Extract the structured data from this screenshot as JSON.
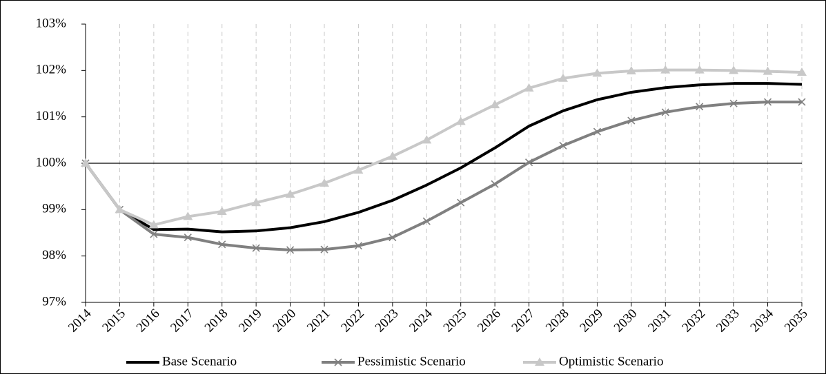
{
  "chart_data": {
    "type": "line",
    "categories": [
      "2014",
      "2015",
      "2016",
      "2017",
      "2018",
      "2019",
      "2020",
      "2021",
      "2022",
      "2023",
      "2024",
      "2025",
      "2026",
      "2027",
      "2028",
      "2029",
      "2030",
      "2031",
      "2032",
      "2033",
      "2034",
      "2035"
    ],
    "series": [
      {
        "name": "Base Scenario",
        "color": "#000000",
        "marker": "none",
        "values": [
          100,
          99.0,
          98.57,
          98.58,
          98.52,
          98.54,
          98.61,
          98.74,
          98.94,
          99.2,
          99.53,
          99.9,
          100.33,
          100.8,
          101.13,
          101.37,
          101.53,
          101.63,
          101.69,
          101.72,
          101.72,
          101.7
        ]
      },
      {
        "name": "Pessimistic Scenario",
        "color": "#808080",
        "marker": "x",
        "values": [
          100,
          99.0,
          98.47,
          98.4,
          98.25,
          98.17,
          98.13,
          98.14,
          98.22,
          98.4,
          98.75,
          99.15,
          99.55,
          100.02,
          100.38,
          100.68,
          100.92,
          101.1,
          101.22,
          101.29,
          101.32,
          101.32
        ]
      },
      {
        "name": "Optimistic Scenario",
        "color": "#c8c8c8",
        "marker": "triangle",
        "values": [
          100,
          99.0,
          98.67,
          98.85,
          98.96,
          99.15,
          99.33,
          99.57,
          99.85,
          100.15,
          100.5,
          100.9,
          101.26,
          101.62,
          101.83,
          101.94,
          101.99,
          102.01,
          102.01,
          102.0,
          101.98,
          101.96
        ]
      }
    ],
    "ylim": [
      97,
      103
    ],
    "yticks": [
      {
        "value": 97,
        "label": "97%"
      },
      {
        "value": 98,
        "label": "98%"
      },
      {
        "value": 99,
        "label": "99%"
      },
      {
        "value": 100,
        "label": "100%"
      },
      {
        "value": 101,
        "label": "101%"
      },
      {
        "value": 102,
        "label": "102%"
      },
      {
        "value": 103,
        "label": "103%"
      }
    ],
    "reference_line": 100,
    "grid": "vertical-dashed",
    "legend": "bottom"
  }
}
